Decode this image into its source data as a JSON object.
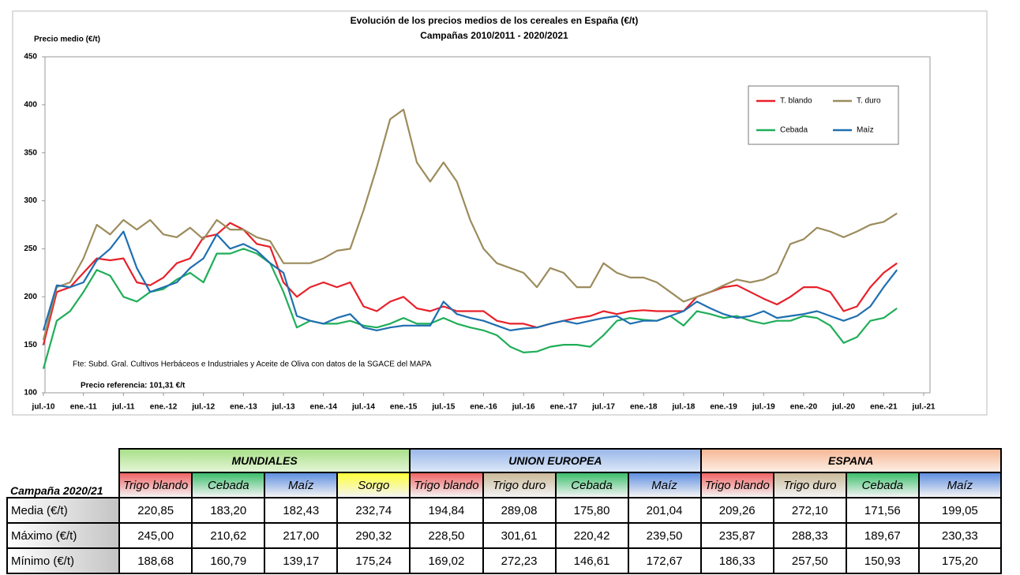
{
  "chart_data": {
    "type": "line",
    "title": "Evolución de los precios medios de los cereales en España (€/t)",
    "subtitle": "Campañas 2010/2011 - 2020/2021",
    "y_label": "Precio medio (€/t)",
    "annotations": [
      "Fte: Subd. Gral. Cultivos Herbáceos e Industriales y Aceite de Oliva con datos de la SGACE del MAPA",
      "Precio referencia: 101,31 €/t"
    ],
    "categories": [
      "jul.-10",
      null,
      null,
      "ene.-11",
      null,
      null,
      "jul.-11",
      null,
      null,
      "ene.-12",
      null,
      null,
      "jul.-12",
      null,
      null,
      "ene.-13",
      null,
      null,
      "jul.-13",
      null,
      null,
      "ene.-14",
      null,
      null,
      "jul.-14",
      null,
      null,
      "ene.-15",
      null,
      null,
      "jul.-15",
      null,
      null,
      "ene.-16",
      null,
      null,
      "jul.-16",
      null,
      null,
      "ene.-17",
      null,
      null,
      "jul.-17",
      null,
      null,
      "ene.-18",
      null,
      null,
      "jul.-18",
      null,
      null,
      "ene.-19",
      null,
      null,
      "jul.-19",
      null,
      null,
      "ene.-20",
      null,
      null,
      "jul.-20",
      null,
      null,
      "ene.-21",
      null,
      null,
      "jul.-21"
    ],
    "series": [
      {
        "name": "T. blando",
        "color": "#e8202a",
        "values": [
          150,
          205,
          210,
          225,
          240,
          238,
          240,
          215,
          212,
          220,
          235,
          240,
          262,
          265,
          277,
          270,
          255,
          252,
          215,
          200,
          210,
          215,
          210,
          215,
          190,
          185,
          195,
          200,
          188,
          185,
          190,
          185,
          185,
          185,
          175,
          172,
          172,
          168,
          172,
          175,
          178,
          180,
          185,
          182,
          185,
          186,
          185,
          185,
          185,
          200,
          205,
          210,
          212,
          205,
          198,
          192,
          200,
          210,
          210,
          205,
          185,
          190,
          210,
          225,
          235,
          null,
          null
        ]
      },
      {
        "name": "T. duro",
        "color": "#9c8c5c",
        "values": [
          155,
          210,
          215,
          240,
          275,
          265,
          280,
          270,
          280,
          265,
          262,
          272,
          260,
          280,
          270,
          270,
          262,
          258,
          235,
          235,
          235,
          240,
          248,
          250,
          290,
          335,
          385,
          395,
          340,
          320,
          340,
          320,
          280,
          250,
          235,
          230,
          225,
          210,
          230,
          225,
          210,
          210,
          235,
          225,
          220,
          220,
          215,
          205,
          195,
          200,
          205,
          212,
          218,
          215,
          218,
          225,
          255,
          260,
          272,
          268,
          262,
          268,
          275,
          278,
          287,
          null,
          null
        ]
      },
      {
        "name": "Cebada",
        "color": "#1fae58",
        "values": [
          125,
          175,
          185,
          205,
          228,
          222,
          200,
          195,
          205,
          208,
          218,
          225,
          215,
          245,
          245,
          250,
          245,
          235,
          205,
          168,
          175,
          172,
          172,
          175,
          170,
          168,
          172,
          178,
          172,
          172,
          178,
          172,
          168,
          165,
          160,
          148,
          142,
          143,
          148,
          150,
          150,
          148,
          160,
          175,
          178,
          176,
          175,
          180,
          170,
          185,
          182,
          178,
          180,
          175,
          172,
          175,
          175,
          180,
          178,
          170,
          152,
          158,
          175,
          178,
          188,
          null,
          null
        ]
      },
      {
        "name": "Maíz",
        "color": "#1f6fb0",
        "values": [
          165,
          212,
          210,
          215,
          238,
          250,
          268,
          230,
          205,
          210,
          215,
          230,
          240,
          265,
          250,
          255,
          248,
          235,
          225,
          180,
          175,
          172,
          178,
          182,
          168,
          165,
          168,
          170,
          170,
          170,
          195,
          182,
          178,
          175,
          170,
          165,
          167,
          168,
          172,
          175,
          172,
          175,
          178,
          180,
          172,
          175,
          175,
          180,
          185,
          195,
          188,
          182,
          178,
          180,
          185,
          178,
          180,
          182,
          185,
          180,
          175,
          180,
          190,
          210,
          228,
          null,
          null
        ]
      }
    ],
    "ylim": [
      100,
      450
    ],
    "yticks": [
      100,
      150,
      200,
      250,
      300,
      350,
      400,
      450
    ],
    "grid": false,
    "legend": "upper right"
  },
  "table": {
    "corner": "Campaña 2020/21",
    "groups": [
      {
        "name": "MUNDIALES",
        "columns": [
          "Trigo blando",
          "Cebada",
          "Maíz",
          "Sorgo"
        ]
      },
      {
        "name": "UNION EUROPEA",
        "columns": [
          "Trigo blando",
          "Trigo duro",
          "Cebada",
          "Maíz"
        ]
      },
      {
        "name": "ESPANA",
        "columns": [
          "Trigo blando",
          "Trigo duro",
          "Cebada",
          "Maíz"
        ]
      }
    ],
    "rows": [
      {
        "label": "Media (€/t)",
        "values": [
          "220,85",
          "183,20",
          "182,43",
          "232,74",
          "194,84",
          "289,08",
          "175,80",
          "201,04",
          "209,26",
          "272,10",
          "171,56",
          "199,05"
        ]
      },
      {
        "label": "Máximo (€/t)",
        "values": [
          "245,00",
          "210,62",
          "217,00",
          "290,32",
          "228,50",
          "301,61",
          "220,42",
          "239,50",
          "235,87",
          "288,33",
          "189,67",
          "230,33"
        ]
      },
      {
        "label": "Mínimo (€/t)",
        "values": [
          "188,68",
          "160,79",
          "139,17",
          "175,24",
          "169,02",
          "272,23",
          "146,61",
          "172,67",
          "186,33",
          "257,50",
          "150,93",
          "175,20"
        ]
      }
    ]
  }
}
